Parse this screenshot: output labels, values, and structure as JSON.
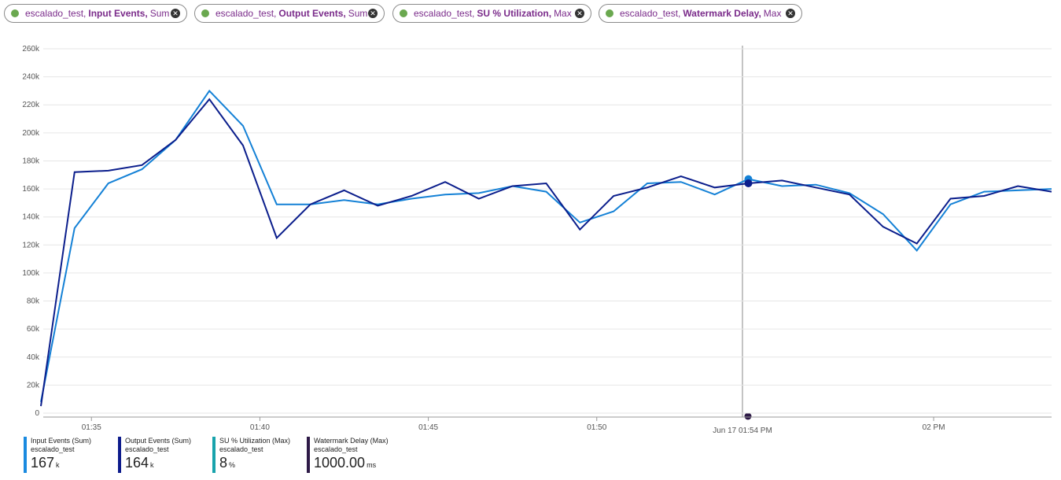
{
  "pills": [
    {
      "resource": "escalado_test,",
      "metric": "Input Events,",
      "aggregation": "Sum"
    },
    {
      "resource": "escalado_test,",
      "metric": "Output Events,",
      "aggregation": "Sum"
    },
    {
      "resource": "escalado_test,",
      "metric": "SU % Utilization,",
      "aggregation": "Max"
    },
    {
      "resource": "escalado_test,",
      "metric": "Watermark Delay,",
      "aggregation": "Max"
    }
  ],
  "chart_data": {
    "type": "line",
    "x": [
      33.5,
      34.5,
      35.5,
      36.5,
      37.5,
      38.5,
      39.5,
      40.5,
      41.5,
      42.5,
      43.5,
      44.5,
      45.5,
      46.5,
      47.5,
      48.5,
      49.5,
      50.5,
      51.5,
      52.5,
      53.5,
      54.5,
      55.5,
      56.5,
      57.5,
      58.5,
      59.5,
      60.5,
      61.5,
      62.5,
      63.5
    ],
    "series": [
      {
        "name": "Input Events (Sum)",
        "color": "#1481d6",
        "values": [
          8000,
          132000,
          164000,
          174000,
          195000,
          230000,
          205000,
          149000,
          149000,
          152000,
          149000,
          153000,
          156000,
          157000,
          162000,
          158000,
          136000,
          144000,
          164000,
          165000,
          156000,
          167000,
          162000,
          163000,
          157000,
          142000,
          116000,
          149000,
          158000,
          159000,
          160000
        ]
      },
      {
        "name": "Output Events (Sum)",
        "color": "#0b1e8c",
        "values": [
          5000,
          172000,
          173000,
          177000,
          195000,
          224000,
          191000,
          125000,
          149000,
          159000,
          148000,
          155000,
          165000,
          153000,
          162000,
          164000,
          131000,
          155000,
          161000,
          169000,
          161000,
          164000,
          166000,
          161000,
          156000,
          133000,
          121000,
          153000,
          155000,
          162000,
          158000
        ]
      }
    ],
    "xlim": [
      33.5,
      63.5
    ],
    "xticks": [
      {
        "value": 35,
        "label": "01:35"
      },
      {
        "value": 40,
        "label": "01:40"
      },
      {
        "value": 45,
        "label": "01:45"
      },
      {
        "value": 50,
        "label": "01:50"
      },
      {
        "value": 60,
        "label": "02 PM"
      }
    ],
    "ylim": [
      0,
      260000
    ],
    "yticks": [
      0,
      {
        "value": 20000,
        "label": "20k"
      },
      {
        "value": 40000,
        "label": "40k"
      },
      {
        "value": 60000,
        "label": "60k"
      },
      {
        "value": 80000,
        "label": "80k"
      },
      {
        "value": 100000,
        "label": "100k"
      },
      {
        "value": 120000,
        "label": "120k"
      },
      {
        "value": 140000,
        "label": "140k"
      },
      {
        "value": 160000,
        "label": "160k"
      },
      {
        "value": 180000,
        "label": "180k"
      },
      {
        "value": 200000,
        "label": "200k"
      },
      {
        "value": 220000,
        "label": "220k"
      },
      {
        "value": 240000,
        "label": "240k"
      },
      {
        "value": 260000,
        "label": "260k"
      }
    ],
    "grid": true,
    "hover_label": "Jun 17 01:54 PM"
  },
  "legend": [
    {
      "name": "Input Events (Sum)",
      "resource": "escalado_test",
      "value": "167",
      "unit": "k",
      "color": "#1a8ae0"
    },
    {
      "name": "Output Events (Sum)",
      "resource": "escalado_test",
      "value": "164",
      "unit": "k",
      "color": "#0d1b8c"
    },
    {
      "name": "SU % Utilization (Max)",
      "resource": "escalado_test",
      "value": "8",
      "unit": "%",
      "color": "#18a3ac"
    },
    {
      "name": "Watermark Delay (Max)",
      "resource": "escalado_test",
      "value": "1000.00",
      "unit": "ms",
      "color": "#2e1a47"
    }
  ]
}
